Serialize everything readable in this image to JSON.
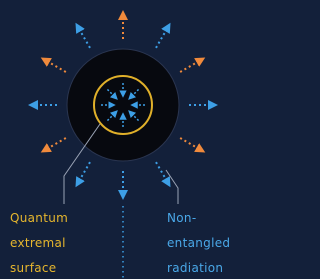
{
  "labels": [
    {
      "lines": [
        "Quantum",
        "extremal",
        "surface"
      ]
    },
    {
      "lines": [
        "Non-",
        "entangled",
        "radiation"
      ]
    }
  ]
}
